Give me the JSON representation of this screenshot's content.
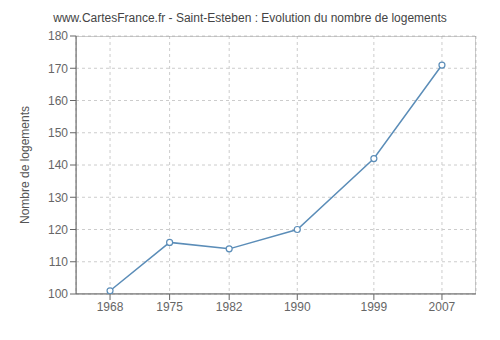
{
  "chart_data": {
    "type": "line",
    "title": "www.CartesFrance.fr - Saint-Esteben : Evolution du nombre de logements",
    "ylabel": "Nombre de logements",
    "x": [
      1968,
      1975,
      1982,
      1990,
      1999,
      2007
    ],
    "values": [
      101,
      116,
      114,
      120,
      142,
      171
    ],
    "color": "#5b8db8",
    "marker": "circle",
    "xlim": [
      1964,
      2011
    ],
    "ylim": [
      100,
      180
    ],
    "xticks": [
      1968,
      1975,
      1982,
      1990,
      1999,
      2007
    ],
    "yticks": [
      100,
      110,
      120,
      130,
      140,
      150,
      160,
      170,
      180
    ],
    "grid": true
  }
}
